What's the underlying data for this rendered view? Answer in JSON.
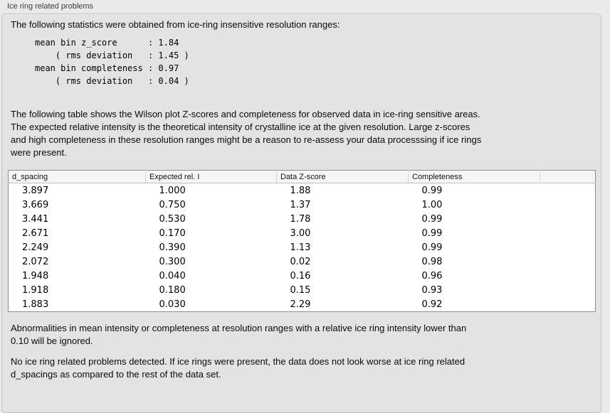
{
  "panel": {
    "title": "Ice ring related problems"
  },
  "intro": {
    "text": "The following statistics were obtained from ice-ring insensitive resolution ranges:",
    "stats_block": "mean bin z_score      : 1.84\n    ( rms deviation   : 1.45 )\nmean bin completeness : 0.97\n    ( rms deviation   : 0.04 )",
    "stats": {
      "mean_bin_z_score": "1.84",
      "z_score_rms_deviation": "1.45",
      "mean_bin_completeness": "0.97",
      "completeness_rms_deviation": "0.04"
    }
  },
  "description": "The following table shows the Wilson plot Z-scores and completeness for observed data in ice-ring sensitive areas.\nThe expected relative intensity is the theoretical intensity of crystalline ice at the given resolution. Large z-scores\nand high completeness in these resolution ranges might be a reason to re-assess your data processsing if ice rings\nwere present.",
  "table": {
    "columns": [
      "d_spacing",
      "Expected rel. I",
      "Data Z-score",
      "Completeness"
    ],
    "rows": [
      [
        "3.897",
        "1.000",
        "1.88",
        "0.99"
      ],
      [
        "3.669",
        "0.750",
        "1.37",
        "1.00"
      ],
      [
        "3.441",
        "0.530",
        "1.78",
        "0.99"
      ],
      [
        "2.671",
        "0.170",
        "3.00",
        "0.99"
      ],
      [
        "2.249",
        "0.390",
        "1.13",
        "0.99"
      ],
      [
        "2.072",
        "0.300",
        "0.02",
        "0.98"
      ],
      [
        "1.948",
        "0.040",
        "0.16",
        "0.96"
      ],
      [
        "1.918",
        "0.180",
        "0.15",
        "0.93"
      ],
      [
        "1.883",
        "0.030",
        "2.29",
        "0.92"
      ]
    ]
  },
  "notes": {
    "ignore_note": "Abnormalities in mean intensity or completeness at resolution ranges with a relative ice ring intensity lower than\n0.10 will be ignored.",
    "conclusion": "No ice ring related problems detected. If ice rings were present, the data does not look worse at ice ring related\nd_spacings as compared to the rest of the data set."
  },
  "colors": {
    "panel_background": "#e3e3e3",
    "page_background": "#eaeaea",
    "panel_border": "#c3c3c3",
    "table_background": "#ffffff",
    "table_border": "#8d8d8d",
    "header_background": "#f6f6f6",
    "text": "#0a0a0a",
    "title_text": "#3d3d3d"
  }
}
